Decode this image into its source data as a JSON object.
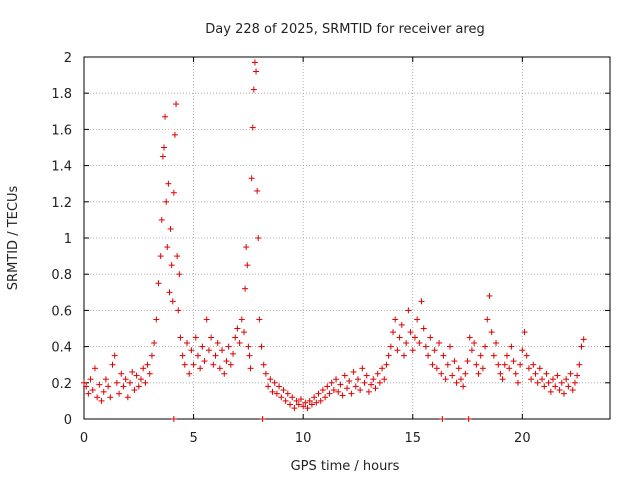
{
  "chart_data": {
    "type": "scatter",
    "title": "Day 228 of 2025, SRMTID for receiver areg",
    "xlabel": "GPS time / hours",
    "ylabel": "SRMTID / TECUs",
    "xlim": [
      0,
      24
    ],
    "ylim": [
      0,
      2
    ],
    "x_ticks": [
      0,
      5,
      10,
      15,
      20
    ],
    "x_tick_labels": [
      "0",
      "5",
      "10",
      "15",
      "20"
    ],
    "y_ticks": [
      0,
      0.2,
      0.4,
      0.6,
      0.8,
      1,
      1.2,
      1.4,
      1.6,
      1.8,
      2
    ],
    "y_tick_labels": [
      "0",
      "0.2",
      "0.4",
      "0.6",
      "0.8",
      "1",
      "1.2",
      "1.4",
      "1.6",
      "1.8",
      "2"
    ],
    "grid": true,
    "marker": "+",
    "color": "#e00000",
    "series": [
      {
        "name": "SRMTID",
        "points": [
          [
            0.0,
            0.2
          ],
          [
            0.1,
            0.18
          ],
          [
            0.2,
            0.14
          ],
          [
            0.3,
            0.22
          ],
          [
            0.4,
            0.16
          ],
          [
            0.5,
            0.28
          ],
          [
            0.6,
            0.12
          ],
          [
            0.7,
            0.19
          ],
          [
            0.8,
            0.1
          ],
          [
            0.9,
            0.15
          ],
          [
            1.0,
            0.22
          ],
          [
            1.1,
            0.18
          ],
          [
            1.2,
            0.12
          ],
          [
            1.3,
            0.3
          ],
          [
            1.4,
            0.35
          ],
          [
            1.5,
            0.2
          ],
          [
            1.6,
            0.14
          ],
          [
            1.7,
            0.25
          ],
          [
            1.8,
            0.18
          ],
          [
            1.9,
            0.22
          ],
          [
            2.0,
            0.12
          ],
          [
            2.1,
            0.2
          ],
          [
            2.2,
            0.26
          ],
          [
            2.3,
            0.16
          ],
          [
            2.4,
            0.24
          ],
          [
            2.5,
            0.18
          ],
          [
            2.6,
            0.22
          ],
          [
            2.7,
            0.28
          ],
          [
            2.8,
            0.2
          ],
          [
            2.9,
            0.3
          ],
          [
            3.0,
            0.25
          ],
          [
            3.1,
            0.35
          ],
          [
            3.2,
            0.42
          ],
          [
            3.3,
            0.55
          ],
          [
            3.4,
            0.75
          ],
          [
            3.5,
            0.9
          ],
          [
            3.55,
            1.1
          ],
          [
            3.6,
            1.45
          ],
          [
            3.65,
            1.5
          ],
          [
            3.7,
            1.67
          ],
          [
            3.75,
            1.2
          ],
          [
            3.8,
            0.95
          ],
          [
            3.85,
            1.3
          ],
          [
            3.9,
            0.7
          ],
          [
            3.95,
            1.05
          ],
          [
            4.0,
            0.85
          ],
          [
            4.05,
            0.65
          ],
          [
            4.1,
            1.25
          ],
          [
            4.15,
            1.57
          ],
          [
            4.2,
            1.74
          ],
          [
            4.25,
            0.9
          ],
          [
            4.3,
            0.6
          ],
          [
            4.35,
            0.8
          ],
          [
            4.4,
            0.45
          ],
          [
            4.5,
            0.35
          ],
          [
            4.6,
            0.3
          ],
          [
            4.7,
            0.42
          ],
          [
            4.8,
            0.25
          ],
          [
            4.9,
            0.38
          ],
          [
            5.0,
            0.3
          ],
          [
            5.1,
            0.45
          ],
          [
            5.2,
            0.35
          ],
          [
            5.3,
            0.28
          ],
          [
            5.4,
            0.4
          ],
          [
            5.5,
            0.32
          ],
          [
            5.6,
            0.55
          ],
          [
            5.7,
            0.38
          ],
          [
            5.8,
            0.45
          ],
          [
            5.9,
            0.3
          ],
          [
            6.0,
            0.35
          ],
          [
            6.1,
            0.42
          ],
          [
            6.2,
            0.28
          ],
          [
            6.3,
            0.38
          ],
          [
            6.4,
            0.25
          ],
          [
            6.5,
            0.32
          ],
          [
            6.6,
            0.4
          ],
          [
            6.7,
            0.3
          ],
          [
            6.8,
            0.36
          ],
          [
            6.9,
            0.45
          ],
          [
            7.0,
            0.5
          ],
          [
            7.1,
            0.42
          ],
          [
            7.2,
            0.55
          ],
          [
            7.3,
            0.48
          ],
          [
            7.35,
            0.72
          ],
          [
            7.4,
            0.95
          ],
          [
            7.45,
            0.85
          ],
          [
            7.5,
            0.4
          ],
          [
            7.55,
            0.35
          ],
          [
            7.6,
            0.28
          ],
          [
            7.65,
            1.33
          ],
          [
            7.7,
            1.61
          ],
          [
            7.75,
            1.82
          ],
          [
            7.8,
            1.97
          ],
          [
            7.85,
            1.92
          ],
          [
            7.9,
            1.26
          ],
          [
            7.95,
            1.0
          ],
          [
            8.0,
            0.55
          ],
          [
            8.1,
            0.4
          ],
          [
            8.2,
            0.3
          ],
          [
            8.3,
            0.25
          ],
          [
            8.4,
            0.18
          ],
          [
            8.5,
            0.22
          ],
          [
            8.6,
            0.15
          ],
          [
            8.7,
            0.2
          ],
          [
            8.8,
            0.14
          ],
          [
            8.9,
            0.18
          ],
          [
            9.0,
            0.12
          ],
          [
            9.1,
            0.16
          ],
          [
            9.2,
            0.1
          ],
          [
            9.3,
            0.14
          ],
          [
            9.4,
            0.08
          ],
          [
            9.5,
            0.12
          ],
          [
            9.6,
            0.06
          ],
          [
            9.7,
            0.1
          ],
          [
            9.8,
            0.08
          ],
          [
            9.9,
            0.11
          ],
          [
            10.0,
            0.07
          ],
          [
            10.1,
            0.09
          ],
          [
            10.2,
            0.06
          ],
          [
            10.3,
            0.1
          ],
          [
            10.4,
            0.08
          ],
          [
            10.5,
            0.12
          ],
          [
            10.6,
            0.09
          ],
          [
            10.7,
            0.14
          ],
          [
            10.8,
            0.1
          ],
          [
            10.9,
            0.16
          ],
          [
            11.0,
            0.12
          ],
          [
            11.1,
            0.18
          ],
          [
            11.2,
            0.14
          ],
          [
            11.3,
            0.2
          ],
          [
            11.4,
            0.16
          ],
          [
            11.5,
            0.22
          ],
          [
            11.6,
            0.15
          ],
          [
            11.7,
            0.19
          ],
          [
            11.8,
            0.13
          ],
          [
            11.9,
            0.24
          ],
          [
            12.0,
            0.17
          ],
          [
            12.1,
            0.21
          ],
          [
            12.2,
            0.14
          ],
          [
            12.3,
            0.26
          ],
          [
            12.4,
            0.18
          ],
          [
            12.5,
            0.22
          ],
          [
            12.6,
            0.16
          ],
          [
            12.7,
            0.28
          ],
          [
            12.8,
            0.2
          ],
          [
            12.9,
            0.24
          ],
          [
            13.0,
            0.15
          ],
          [
            13.1,
            0.19
          ],
          [
            13.2,
            0.22
          ],
          [
            13.3,
            0.17
          ],
          [
            13.4,
            0.25
          ],
          [
            13.5,
            0.2
          ],
          [
            13.6,
            0.28
          ],
          [
            13.7,
            0.22
          ],
          [
            13.8,
            0.3
          ],
          [
            13.9,
            0.35
          ],
          [
            14.0,
            0.4
          ],
          [
            14.1,
            0.48
          ],
          [
            14.2,
            0.55
          ],
          [
            14.3,
            0.38
          ],
          [
            14.4,
            0.45
          ],
          [
            14.5,
            0.52
          ],
          [
            14.6,
            0.35
          ],
          [
            14.7,
            0.42
          ],
          [
            14.8,
            0.6
          ],
          [
            14.9,
            0.48
          ],
          [
            15.0,
            0.38
          ],
          [
            15.1,
            0.45
          ],
          [
            15.2,
            0.55
          ],
          [
            15.3,
            0.42
          ],
          [
            15.4,
            0.65
          ],
          [
            15.5,
            0.5
          ],
          [
            15.6,
            0.4
          ],
          [
            15.7,
            0.35
          ],
          [
            15.8,
            0.45
          ],
          [
            15.9,
            0.3
          ],
          [
            16.0,
            0.38
          ],
          [
            16.1,
            0.28
          ],
          [
            16.2,
            0.42
          ],
          [
            16.3,
            0.25
          ],
          [
            16.4,
            0.35
          ],
          [
            16.5,
            0.22
          ],
          [
            16.6,
            0.3
          ],
          [
            16.7,
            0.4
          ],
          [
            16.8,
            0.24
          ],
          [
            16.9,
            0.32
          ],
          [
            17.0,
            0.2
          ],
          [
            17.1,
            0.28
          ],
          [
            17.2,
            0.22
          ],
          [
            17.3,
            0.18
          ],
          [
            17.4,
            0.25
          ],
          [
            17.5,
            0.32
          ],
          [
            17.6,
            0.45
          ],
          [
            17.7,
            0.38
          ],
          [
            17.8,
            0.42
          ],
          [
            17.9,
            0.3
          ],
          [
            18.0,
            0.25
          ],
          [
            18.1,
            0.35
          ],
          [
            18.2,
            0.28
          ],
          [
            18.3,
            0.4
          ],
          [
            18.4,
            0.55
          ],
          [
            18.5,
            0.68
          ],
          [
            18.6,
            0.48
          ],
          [
            18.7,
            0.35
          ],
          [
            18.8,
            0.42
          ],
          [
            18.9,
            0.3
          ],
          [
            19.0,
            0.25
          ],
          [
            19.1,
            0.22
          ],
          [
            19.2,
            0.3
          ],
          [
            19.3,
            0.35
          ],
          [
            19.4,
            0.28
          ],
          [
            19.5,
            0.4
          ],
          [
            19.6,
            0.32
          ],
          [
            19.7,
            0.25
          ],
          [
            19.8,
            0.2
          ],
          [
            19.9,
            0.3
          ],
          [
            20.0,
            0.38
          ],
          [
            20.1,
            0.48
          ],
          [
            20.2,
            0.35
          ],
          [
            20.3,
            0.28
          ],
          [
            20.4,
            0.22
          ],
          [
            20.5,
            0.3
          ],
          [
            20.6,
            0.25
          ],
          [
            20.7,
            0.2
          ],
          [
            20.8,
            0.28
          ],
          [
            20.9,
            0.22
          ],
          [
            21.0,
            0.18
          ],
          [
            21.1,
            0.25
          ],
          [
            21.2,
            0.2
          ],
          [
            21.3,
            0.15
          ],
          [
            21.4,
            0.22
          ],
          [
            21.5,
            0.18
          ],
          [
            21.6,
            0.24
          ],
          [
            21.7,
            0.16
          ],
          [
            21.8,
            0.2
          ],
          [
            21.9,
            0.14
          ],
          [
            22.0,
            0.22
          ],
          [
            22.1,
            0.18
          ],
          [
            22.2,
            0.25
          ],
          [
            22.3,
            0.16
          ],
          [
            22.4,
            0.2
          ],
          [
            22.5,
            0.24
          ],
          [
            22.6,
            0.3
          ],
          [
            22.7,
            0.4
          ],
          [
            22.8,
            0.44
          ],
          [
            4.1,
            0.0
          ],
          [
            8.15,
            0.0
          ],
          [
            16.35,
            0.0
          ],
          [
            17.55,
            0.0
          ]
        ]
      }
    ]
  }
}
